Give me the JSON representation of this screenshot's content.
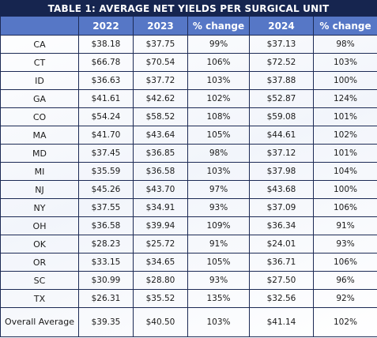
{
  "table": {
    "title": "TABLE 1:  AVERAGE NET YIELDS PER SURGICAL UNIT",
    "columns": [
      "",
      "2022",
      "2023",
      "% change",
      "2024",
      "% change"
    ],
    "rows": [
      [
        "CA",
        "$38.18",
        "$37.75",
        "99%",
        "$37.13",
        "98%"
      ],
      [
        "CT",
        "$66.78",
        "$70.54",
        "106%",
        "$72.52",
        "103%"
      ],
      [
        "ID",
        "$36.63",
        "$37.72",
        "103%",
        "$37.88",
        "100%"
      ],
      [
        "GA",
        "$41.61",
        "$42.62",
        "102%",
        "$52.87",
        "124%"
      ],
      [
        "CO",
        "$54.24",
        "$58.52",
        "108%",
        "$59.08",
        "101%"
      ],
      [
        "MA",
        "$41.70",
        "$43.64",
        "105%",
        "$44.61",
        "102%"
      ],
      [
        "MD",
        "$37.45",
        "$36.85",
        "98%",
        "$37.12",
        "101%"
      ],
      [
        "MI",
        "$35.59",
        "$36.58",
        "103%",
        "$37.98",
        "104%"
      ],
      [
        "NJ",
        "$45.26",
        "$43.70",
        "97%",
        "$43.68",
        "100%"
      ],
      [
        "NY",
        "$37.55",
        "$34.91",
        "93%",
        "$37.09",
        "106%"
      ],
      [
        "OH",
        "$36.58",
        "$39.94",
        "109%",
        "$36.34",
        "91%"
      ],
      [
        "OK",
        "$28.23",
        "$25.72",
        "91%",
        "$24.01",
        "93%"
      ],
      [
        "OR",
        "$33.15",
        "$34.65",
        "105%",
        "$36.71",
        "106%"
      ],
      [
        "SC",
        "$30.99",
        "$28.80",
        "93%",
        "$27.50",
        "96%"
      ],
      [
        "TX",
        "$26.31",
        "$35.52",
        "135%",
        "$32.56",
        "92%"
      ],
      [
        "Overall Average",
        "$39.35",
        "$40.50",
        "103%",
        "$41.14",
        "102%"
      ]
    ]
  }
}
